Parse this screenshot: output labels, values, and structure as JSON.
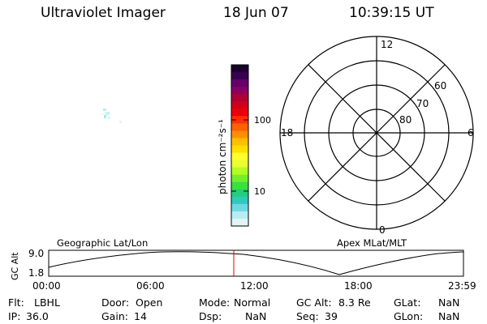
{
  "header": {
    "title": "Ultraviolet Imager",
    "date": "18 Jun 07",
    "time": "10:39:15 UT"
  },
  "colorbar": {
    "label": "photon cm⁻²s⁻¹",
    "scale": "log",
    "tick_labels": [
      "100",
      "10"
    ],
    "colors": [
      "#1a0030",
      "#3b0050",
      "#66006b",
      "#8c0060",
      "#b00030",
      "#d00018",
      "#ec0008",
      "#ff3000",
      "#ff6000",
      "#ff9000",
      "#ffbe00",
      "#ffe000",
      "#ffff30",
      "#e8ff30",
      "#b0ff20",
      "#70f030",
      "#38e040",
      "#20d080",
      "#30c8c0",
      "#70d8e0",
      "#b8ecf0",
      "#e4f4f6"
    ]
  },
  "polar_grid": {
    "mlt_labels": [
      "12",
      "6",
      "0",
      "18"
    ],
    "mlat_labels": [
      "60",
      "70",
      "80"
    ]
  },
  "timeline": {
    "left_label": "Geographic Lat/Lon",
    "right_label": "Apex MLat/MLT",
    "y_axis_label": "GC Alt",
    "y_ticks": [
      "9.0",
      "1.8"
    ],
    "x_ticks": [
      "00:00",
      "06:00",
      "12:00",
      "18:00",
      "23:59"
    ],
    "marker_color": "#e00000"
  },
  "footer": {
    "flt_label": "Flt:",
    "flt_value": "LBHL",
    "door_label": "Door:",
    "door_value": "Open",
    "mode_label": "Mode:",
    "mode_value": "Normal",
    "gcalt_label": "GC Alt:",
    "gcalt_value": "8.3 Re",
    "glat_label": "GLat:",
    "glat_value": "NaN",
    "ip_label": "IP:",
    "ip_value": "36.0",
    "gain_label": "Gain:",
    "gain_value": "14",
    "dsp_label": "Dsp:",
    "dsp_value": "NaN",
    "seq_label": "Seq:",
    "seq_value": "39",
    "glon_label": "GLon:",
    "glon_value": "NaN"
  }
}
